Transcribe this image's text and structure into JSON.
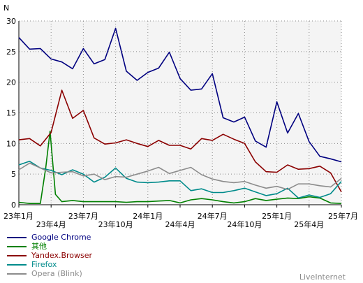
{
  "chart_data": {
    "type": "line",
    "ylabel": "N",
    "ylim": [
      0,
      30
    ],
    "yticks": [
      0,
      5,
      10,
      15,
      20,
      25,
      30
    ],
    "grid": true,
    "legend_position": "bottom-left",
    "x_start_index": 0,
    "x_end_index": 30,
    "x_ticks": [
      {
        "i": 0,
        "label": "23年1月",
        "row": 0
      },
      {
        "i": 3,
        "label": "23年4月",
        "row": 1
      },
      {
        "i": 6,
        "label": "23年7月",
        "row": 0
      },
      {
        "i": 9,
        "label": "23年10月",
        "row": 1
      },
      {
        "i": 12,
        "label": "24年1月",
        "row": 0
      },
      {
        "i": 15,
        "label": "24年4月",
        "row": 1
      },
      {
        "i": 18,
        "label": "24年7月",
        "row": 0
      },
      {
        "i": 21,
        "label": "24年10月",
        "row": 1
      },
      {
        "i": 24,
        "label": "25年1月",
        "row": 0
      },
      {
        "i": 27,
        "label": "25年4月",
        "row": 1
      },
      {
        "i": 30,
        "label": "25年7月",
        "row": 0
      }
    ],
    "series": [
      {
        "name": "Google Chrome",
        "color": "#000080",
        "points": [
          [
            0,
            27.3
          ],
          [
            1,
            25.4
          ],
          [
            2,
            25.5
          ],
          [
            3,
            23.8
          ],
          [
            4,
            23.3
          ],
          [
            5,
            22.2
          ],
          [
            6,
            25.5
          ],
          [
            7,
            23.0
          ],
          [
            8,
            23.7
          ],
          [
            9,
            28.8
          ],
          [
            10,
            21.8
          ],
          [
            11,
            20.3
          ],
          [
            12,
            21.6
          ],
          [
            13,
            22.3
          ],
          [
            14,
            24.9
          ],
          [
            15,
            20.6
          ],
          [
            16,
            18.7
          ],
          [
            17,
            18.9
          ],
          [
            18,
            21.4
          ],
          [
            19,
            14.2
          ],
          [
            20,
            13.5
          ],
          [
            21,
            14.3
          ],
          [
            22,
            10.4
          ],
          [
            23,
            9.4
          ],
          [
            24,
            16.8
          ],
          [
            25,
            11.7
          ],
          [
            26,
            14.9
          ],
          [
            27,
            10.3
          ],
          [
            28,
            7.9
          ],
          [
            29,
            7.5
          ],
          [
            30,
            7.0
          ]
        ]
      },
      {
        "name": "其他",
        "color": "#008000",
        "points": [
          [
            0,
            0.4
          ],
          [
            1,
            0.2
          ],
          [
            2,
            0.2
          ],
          [
            2.5,
            6.0
          ],
          [
            2.9,
            12.0
          ],
          [
            3.4,
            1.7
          ],
          [
            4,
            0.5
          ],
          [
            5,
            0.7
          ],
          [
            6,
            0.5
          ],
          [
            7,
            0.5
          ],
          [
            8,
            0.5
          ],
          [
            9,
            0.5
          ],
          [
            10,
            0.4
          ],
          [
            11,
            0.5
          ],
          [
            12,
            0.5
          ],
          [
            13,
            0.6
          ],
          [
            14,
            0.7
          ],
          [
            15,
            0.3
          ],
          [
            16,
            0.8
          ],
          [
            17,
            1.0
          ],
          [
            18,
            0.8
          ],
          [
            19,
            0.5
          ],
          [
            20,
            0.3
          ],
          [
            21,
            0.5
          ],
          [
            22,
            1.0
          ],
          [
            23,
            0.7
          ],
          [
            24,
            0.9
          ],
          [
            25,
            1.1
          ],
          [
            26,
            1.0
          ],
          [
            27,
            1.3
          ],
          [
            28,
            1.1
          ],
          [
            29,
            0.3
          ],
          [
            30,
            0.2
          ]
        ]
      },
      {
        "name": "Yandex.Browser",
        "color": "#8b0000",
        "points": [
          [
            0,
            10.6
          ],
          [
            1,
            10.8
          ],
          [
            2,
            9.6
          ],
          [
            3,
            11.8
          ],
          [
            4,
            18.7
          ],
          [
            5,
            14.1
          ],
          [
            6,
            15.4
          ],
          [
            7,
            10.9
          ],
          [
            8,
            9.9
          ],
          [
            9,
            10.1
          ],
          [
            10,
            10.6
          ],
          [
            11,
            10.0
          ],
          [
            12,
            9.5
          ],
          [
            13,
            10.5
          ],
          [
            14,
            9.7
          ],
          [
            15,
            9.7
          ],
          [
            16,
            9.1
          ],
          [
            17,
            10.8
          ],
          [
            18,
            10.5
          ],
          [
            19,
            11.5
          ],
          [
            20,
            10.7
          ],
          [
            21,
            10.0
          ],
          [
            22,
            7.0
          ],
          [
            23,
            5.4
          ],
          [
            24,
            5.3
          ],
          [
            25,
            6.5
          ],
          [
            26,
            5.8
          ],
          [
            27,
            5.9
          ],
          [
            28,
            6.3
          ],
          [
            29,
            5.2
          ],
          [
            30,
            2.1
          ]
        ]
      },
      {
        "name": "Firefox",
        "color": "#008b8b",
        "points": [
          [
            0,
            6.5
          ],
          [
            1,
            7.1
          ],
          [
            2,
            6.0
          ],
          [
            3,
            5.6
          ],
          [
            4,
            4.9
          ],
          [
            5,
            5.7
          ],
          [
            6,
            5.0
          ],
          [
            7,
            3.7
          ],
          [
            8,
            4.5
          ],
          [
            9,
            6.0
          ],
          [
            10,
            4.3
          ],
          [
            11,
            3.7
          ],
          [
            12,
            3.6
          ],
          [
            13,
            3.7
          ],
          [
            14,
            3.9
          ],
          [
            15,
            3.9
          ],
          [
            16,
            2.3
          ],
          [
            17,
            2.6
          ],
          [
            18,
            2.0
          ],
          [
            19,
            2.0
          ],
          [
            20,
            2.3
          ],
          [
            21,
            2.7
          ],
          [
            22,
            2.1
          ],
          [
            23,
            1.5
          ],
          [
            24,
            1.8
          ],
          [
            25,
            2.7
          ],
          [
            26,
            1.1
          ],
          [
            27,
            1.6
          ],
          [
            28,
            1.2
          ],
          [
            29,
            1.8
          ],
          [
            30,
            3.8
          ]
        ]
      },
      {
        "name": "Opera (Blink)",
        "color": "#8c8c8c",
        "points": [
          [
            0,
            5.7
          ],
          [
            1,
            6.8
          ],
          [
            2,
            6.0
          ],
          [
            3,
            5.2
          ],
          [
            4,
            5.3
          ],
          [
            5,
            5.4
          ],
          [
            6,
            4.7
          ],
          [
            7,
            5.0
          ],
          [
            8,
            4.1
          ],
          [
            9,
            4.6
          ],
          [
            10,
            4.5
          ],
          [
            11,
            5.0
          ],
          [
            12,
            5.5
          ],
          [
            13,
            6.1
          ],
          [
            14,
            5.1
          ],
          [
            15,
            5.6
          ],
          [
            16,
            6.1
          ],
          [
            17,
            4.9
          ],
          [
            18,
            4.2
          ],
          [
            19,
            3.8
          ],
          [
            20,
            3.6
          ],
          [
            21,
            3.8
          ],
          [
            22,
            3.2
          ],
          [
            23,
            2.7
          ],
          [
            24,
            3.0
          ],
          [
            25,
            2.5
          ],
          [
            26,
            3.4
          ],
          [
            27,
            3.4
          ],
          [
            28,
            3.1
          ],
          [
            29,
            2.9
          ],
          [
            30,
            4.3
          ]
        ]
      }
    ]
  },
  "credit": "LiveInternet"
}
